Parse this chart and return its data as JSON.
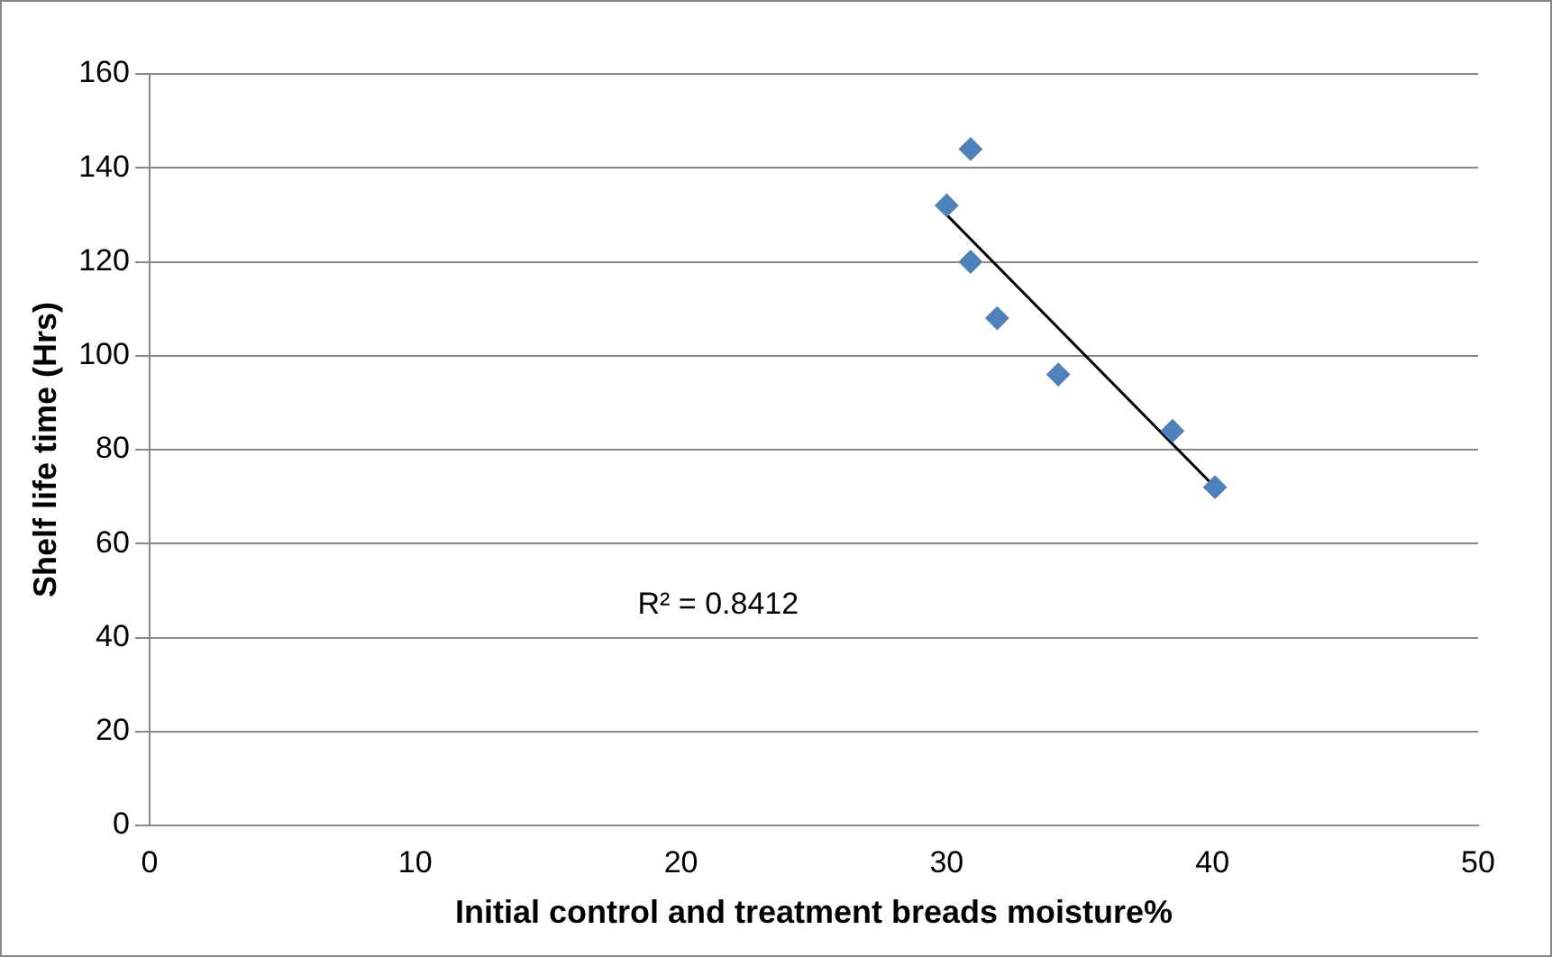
{
  "chart_data": {
    "type": "scatter",
    "xlabel": "Initial control and treatment breads moisture%",
    "ylabel": "Shelf life time (Hrs)",
    "xlim": [
      0,
      50
    ],
    "xticks": [
      0,
      10,
      20,
      30,
      40,
      50
    ],
    "ylim": [
      0,
      160
    ],
    "yticks": [
      0,
      20,
      40,
      60,
      80,
      100,
      120,
      140,
      160
    ],
    "grid": "y",
    "marker": "diamond",
    "legend": false,
    "series": [
      {
        "color": "#4f81bd",
        "x": [
          30.9,
          30.0,
          30.9,
          31.9,
          34.2,
          38.5,
          40.1
        ],
        "values": [
          144,
          132,
          120,
          108,
          96,
          84,
          72
        ]
      },
      {
        "type": "line",
        "color": "#000000",
        "marker": "none",
        "x": [
          30.0,
          40.1
        ],
        "values": [
          130,
          72
        ]
      }
    ],
    "annotations": [
      "R² = 0.8412"
    ]
  }
}
